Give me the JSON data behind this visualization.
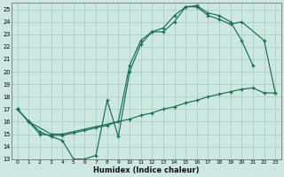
{
  "xlabel": "Humidex (Indice chaleur)",
  "bg_color": "#cce8e0",
  "line_color": "#1a6b5a",
  "grid_color": "#aacfc5",
  "xlim": [
    -0.5,
    23.5
  ],
  "ylim": [
    13,
    25.5
  ],
  "xticks": [
    0,
    1,
    2,
    3,
    4,
    5,
    6,
    7,
    8,
    9,
    10,
    11,
    12,
    13,
    14,
    15,
    16,
    17,
    18,
    19,
    20,
    21,
    22,
    23
  ],
  "yticks": [
    13,
    14,
    15,
    16,
    17,
    18,
    19,
    20,
    21,
    22,
    23,
    24,
    25
  ],
  "s1_x": [
    0,
    1,
    2,
    3,
    4,
    5,
    6,
    7,
    8,
    9,
    10,
    11,
    12,
    13,
    14,
    15,
    16,
    17,
    18,
    19,
    20,
    21
  ],
  "s1_y": [
    17.0,
    16.0,
    15.2,
    14.8,
    14.5,
    13.0,
    13.0,
    13.3,
    17.7,
    14.8,
    20.0,
    22.2,
    23.2,
    23.2,
    24.0,
    25.2,
    25.3,
    24.7,
    24.5,
    24.0,
    22.5,
    20.5
  ],
  "s2_x": [
    0,
    1,
    3,
    4,
    9,
    10,
    11,
    12,
    13,
    14,
    15,
    16,
    17,
    18,
    19,
    20,
    22,
    23
  ],
  "s2_y": [
    17.0,
    16.0,
    15.0,
    15.0,
    16.0,
    20.5,
    22.5,
    23.2,
    23.5,
    24.5,
    25.2,
    25.2,
    24.5,
    24.2,
    23.8,
    24.0,
    22.5,
    18.3
  ],
  "s3_x": [
    0,
    1,
    2,
    3,
    4,
    5,
    6,
    7,
    8,
    9,
    10,
    11,
    12,
    13,
    14,
    15,
    16,
    17,
    18,
    19,
    20,
    21,
    22,
    23
  ],
  "s3_y": [
    17.0,
    16.0,
    15.0,
    14.9,
    14.9,
    15.1,
    15.3,
    15.5,
    15.7,
    16.0,
    16.2,
    16.5,
    16.7,
    17.0,
    17.2,
    17.5,
    17.7,
    18.0,
    18.2,
    18.4,
    18.6,
    18.7,
    18.3,
    18.3
  ]
}
